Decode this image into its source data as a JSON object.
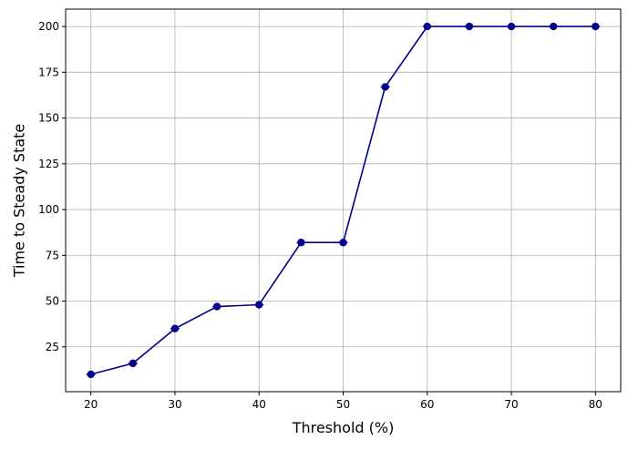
{
  "chart_data": {
    "type": "line",
    "title": "",
    "xlabel": "Threshold (%)",
    "ylabel": "Time to Steady State",
    "xlim": [
      17,
      83
    ],
    "ylim": [
      0.5,
      209.5
    ],
    "xticks": [
      20,
      30,
      40,
      50,
      60,
      70,
      80
    ],
    "yticks": [
      25,
      50,
      75,
      100,
      125,
      150,
      175,
      200
    ],
    "grid": true,
    "legend": "none",
    "series": [
      {
        "x": [
          20,
          25,
          30,
          35,
          40,
          45,
          50,
          55,
          60,
          65,
          70,
          75,
          80
        ],
        "y": [
          10,
          16,
          35,
          47,
          48,
          82,
          82,
          167,
          200,
          200,
          200,
          200,
          200
        ],
        "color": "#00008b",
        "marker": "circle"
      }
    ]
  }
}
